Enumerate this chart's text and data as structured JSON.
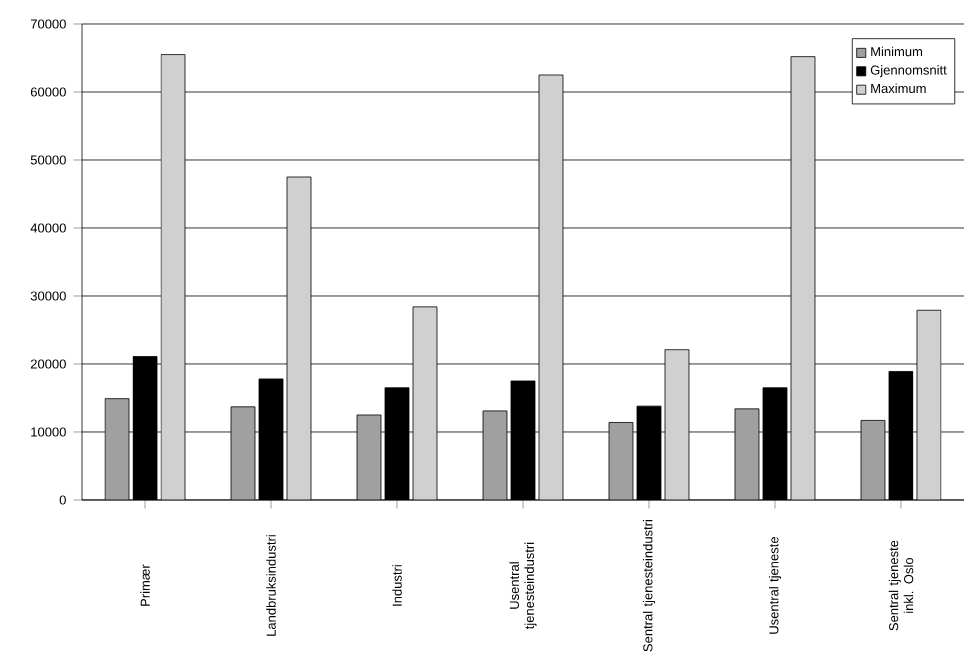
{
  "chart_data": {
    "type": "bar",
    "categories": [
      "Primær",
      "Landbruksindustri",
      "Industri",
      "Usentral tjenesteindustri",
      "Sentral tjenesteindustri",
      "Usentral tjeneste",
      "Sentral tjeneste inkl. Oslo"
    ],
    "series": [
      {
        "name": "Minimum",
        "color": "#a0a0a0",
        "values": [
          14900,
          13700,
          12500,
          13100,
          11400,
          13400,
          11700
        ]
      },
      {
        "name": "Gjennomsnitt",
        "color": "#000000",
        "values": [
          21100,
          17800,
          16500,
          17500,
          13800,
          16500,
          18900
        ]
      },
      {
        "name": "Maximum",
        "color": "#d0d0d0",
        "values": [
          65500,
          47500,
          28400,
          62500,
          22100,
          65200,
          27900
        ]
      }
    ],
    "ylim": [
      0,
      70000
    ],
    "yticks": [
      0,
      10000,
      20000,
      30000,
      40000,
      50000,
      60000,
      70000
    ],
    "grid": "y",
    "legend": "top right"
  }
}
